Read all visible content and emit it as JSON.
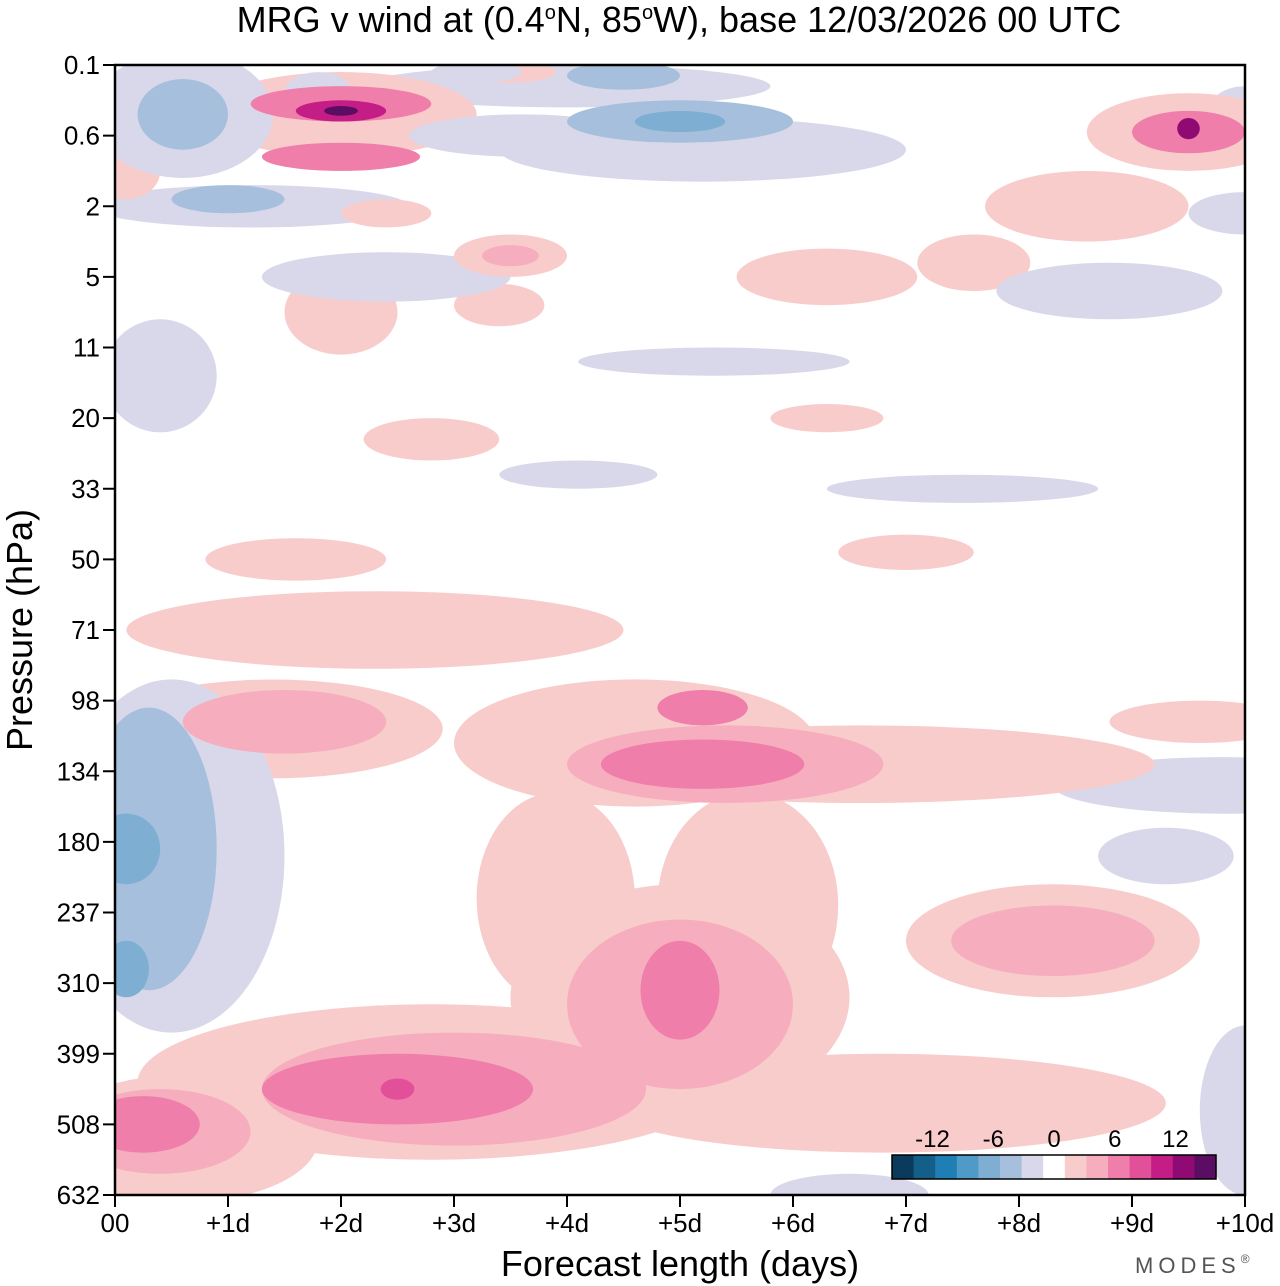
{
  "chart_data": {
    "type": "heatmap",
    "title_main": "MRG v wind at (0.4",
    "title_deg1": "o",
    "title_mid": "N, 85",
    "title_deg2": "o",
    "title_end": "W),  base 12/03/2026  00 UTC",
    "xlabel": "Forecast length (days)",
    "ylabel": "Pressure (hPa)",
    "x_ticks": [
      "00",
      "+1d",
      "+2d",
      "+3d",
      "+4d",
      "+5d",
      "+6d",
      "+7d",
      "+8d",
      "+9d",
      "+10d"
    ],
    "xlim_days": [
      0,
      10
    ],
    "y_ticks": [
      "0.1",
      "0.6",
      "2",
      "5",
      "11",
      "20",
      "33",
      "50",
      "71",
      "98",
      "134",
      "180",
      "237",
      "310",
      "399",
      "508",
      "632"
    ],
    "colorbar": {
      "tick_labels": [
        "-12",
        "-6",
        "0",
        "6",
        "12"
      ],
      "tick_levels": [
        -12,
        -6,
        0,
        6,
        12
      ],
      "levels": [
        -16,
        -14,
        -12,
        -10,
        -8,
        -6,
        -4,
        -2,
        2,
        4,
        6,
        8,
        10,
        12,
        14,
        16
      ],
      "colors": [
        "#0b3b5c",
        "#135f88",
        "#1f7fb4",
        "#4f9ac6",
        "#7faed3",
        "#a6bfdc",
        "#d8d8ea",
        "#ffffff",
        "#f9cccc",
        "#f6aebe",
        "#f07eaa",
        "#e2509a",
        "#c41d86",
        "#8f0b73",
        "#5a0d63"
      ]
    },
    "features": [
      {
        "name": "positive v",
        "day": 2.0,
        "level_index": 0.65,
        "value": 16
      },
      {
        "name": "positive v",
        "day": 9.5,
        "level_index": 0.95,
        "value": 14
      },
      {
        "name": "negative v",
        "day": 5.0,
        "level_index": 0.8,
        "value": -8
      },
      {
        "name": "negative v",
        "day": 0.3,
        "level_index": 11.15,
        "value": -8
      },
      {
        "name": "positive v",
        "day": 5.1,
        "level_index": 10.0,
        "value": 10
      },
      {
        "name": "positive v",
        "day": 5.0,
        "level_index": 13.0,
        "value": 10
      },
      {
        "name": "positive v",
        "day": 2.5,
        "level_index": 14.5,
        "value": 12
      },
      {
        "name": "positive v",
        "day": 0.2,
        "level_index": 15.0,
        "value": 10
      },
      {
        "name": "positive v",
        "day": 8.3,
        "level_index": 12.4,
        "value": 8
      }
    ]
  },
  "brand": "MODES",
  "brand_mark": "®"
}
